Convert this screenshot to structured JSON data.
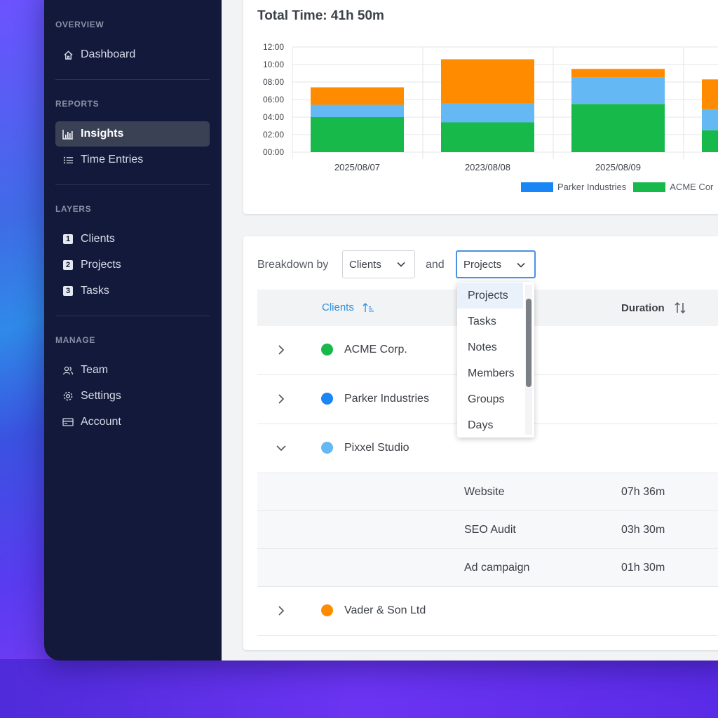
{
  "sidebar": {
    "sections": [
      {
        "title": "OVERVIEW"
      },
      {
        "title": "REPORTS"
      },
      {
        "title": "LAYERS"
      },
      {
        "title": "MANAGE"
      }
    ],
    "items": {
      "dashboard": {
        "label": "Dashboard",
        "icon": "home-icon"
      },
      "insights": {
        "label": "Insights",
        "icon": "bar-chart-icon",
        "active": true
      },
      "time_entries": {
        "label": "Time Entries",
        "icon": "list-icon"
      },
      "clients": {
        "label": "Clients",
        "icon": "number-1-icon",
        "num": "1"
      },
      "projects": {
        "label": "Projects",
        "icon": "number-2-icon",
        "num": "2"
      },
      "tasks": {
        "label": "Tasks",
        "icon": "number-3-icon",
        "num": "3"
      },
      "team": {
        "label": "Team",
        "icon": "team-icon"
      },
      "settings": {
        "label": "Settings",
        "icon": "gear-icon"
      },
      "account": {
        "label": "Account",
        "icon": "card-icon"
      }
    }
  },
  "chart_card": {
    "title": "Total Time: 41h 50m"
  },
  "chart_data": {
    "type": "bar",
    "stacked": true,
    "categories": [
      "2025/08/07",
      "2023/08/08",
      "2025/08/09",
      ""
    ],
    "y_tick_labels": [
      "00:00",
      "02:00",
      "04:00",
      "06:00",
      "08:00",
      "10:00",
      "12:00"
    ],
    "ylim": [
      0,
      12
    ],
    "grid": true,
    "legend_position": "bottom-right",
    "series": [
      {
        "name": "ACME Corp.",
        "color": "#16b94a",
        "values": [
          4.0,
          3.4,
          5.5,
          2.5
        ]
      },
      {
        "name": "Parker Industries",
        "color": "#64b9f4",
        "values": [
          1.4,
          2.2,
          3.0,
          2.4
        ]
      },
      {
        "name": "",
        "color": "#ff8c00",
        "values": [
          2.0,
          5.0,
          1.0,
          3.4
        ]
      }
    ],
    "legend": [
      {
        "label": "Parker Industries",
        "color": "#1a86f5"
      },
      {
        "label": "ACME Cor",
        "color": "#16b94a"
      }
    ]
  },
  "breakdown": {
    "label": "Breakdown by",
    "and_label": "and",
    "first_select": "Clients",
    "second_select": "Projects",
    "options": [
      "Projects",
      "Tasks",
      "Notes",
      "Members",
      "Groups",
      "Days"
    ]
  },
  "table": {
    "col_clients": "Clients",
    "col_duration": "Duration",
    "rows": [
      {
        "name": "ACME Corp.",
        "color": "#16b94a",
        "expanded": false
      },
      {
        "name": "Parker Industries",
        "color": "#1a86f5",
        "expanded": false
      },
      {
        "name": "Pixxel Studio",
        "color": "#64b9f4",
        "expanded": true,
        "children": [
          {
            "project": "Website",
            "duration": "07h 36m"
          },
          {
            "project": "SEO Audit",
            "duration": "03h 30m"
          },
          {
            "project": "Ad campaign",
            "duration": "01h 30m"
          }
        ]
      },
      {
        "name": "Vader & Son Ltd",
        "color": "#ff8c00",
        "expanded": false
      }
    ]
  }
}
